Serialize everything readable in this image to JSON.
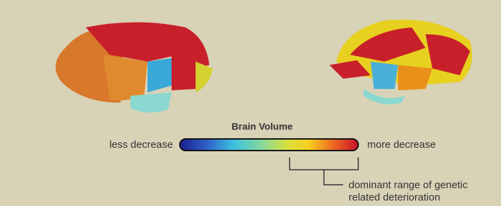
{
  "title": "Brain Volume",
  "scale": {
    "low_label": "less decrease",
    "high_label": "more decrease"
  },
  "annotation": {
    "line1": "dominant range of genetic",
    "line2": "related deterioration"
  }
}
